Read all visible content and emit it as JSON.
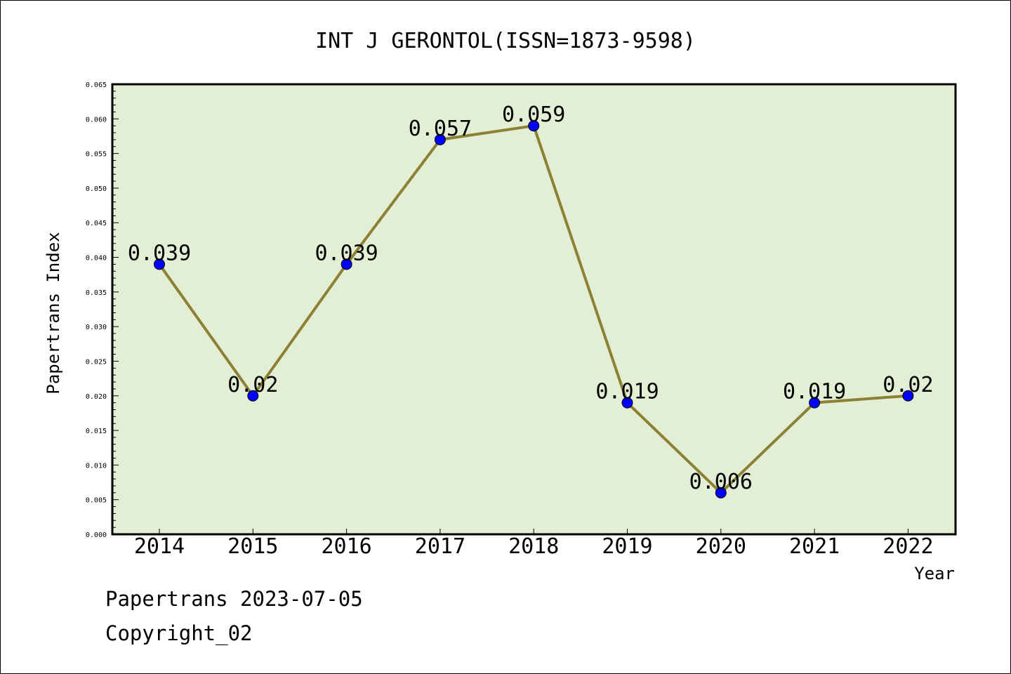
{
  "footer": {
    "date_line": "Papertrans 2023-07-05",
    "copyright_line": "Copyright_02"
  },
  "colors": {
    "plot_background": "#e2efd5",
    "line": "#8c8034",
    "marker": "#0000ff",
    "axis": "#000000"
  },
  "chart_data": {
    "type": "line",
    "title": "INT J GERONTOL(ISSN=1873-9598)",
    "xlabel": "Year",
    "ylabel": "Papertrans Index",
    "categories": [
      "2014",
      "2015",
      "2016",
      "2017",
      "2018",
      "2019",
      "2020",
      "2021",
      "2022"
    ],
    "series": [
      {
        "values": [
          0.039,
          0.02,
          0.039,
          0.057,
          0.059,
          0.019,
          0.006,
          0.019,
          0.02
        ],
        "labels": [
          "0.039",
          "0.02",
          "0.039",
          "0.057",
          "0.059",
          "0.019",
          "0.006",
          "0.019",
          "0.02"
        ]
      }
    ],
    "ylim": [
      0,
      0.065
    ],
    "yticks": [
      "0.000",
      "0.005",
      "0.010",
      "0.015",
      "0.020",
      "0.025",
      "0.030",
      "0.035",
      "0.040",
      "0.045",
      "0.050",
      "0.055",
      "0.060",
      "0.065"
    ],
    "grid": false,
    "legend": "none"
  }
}
